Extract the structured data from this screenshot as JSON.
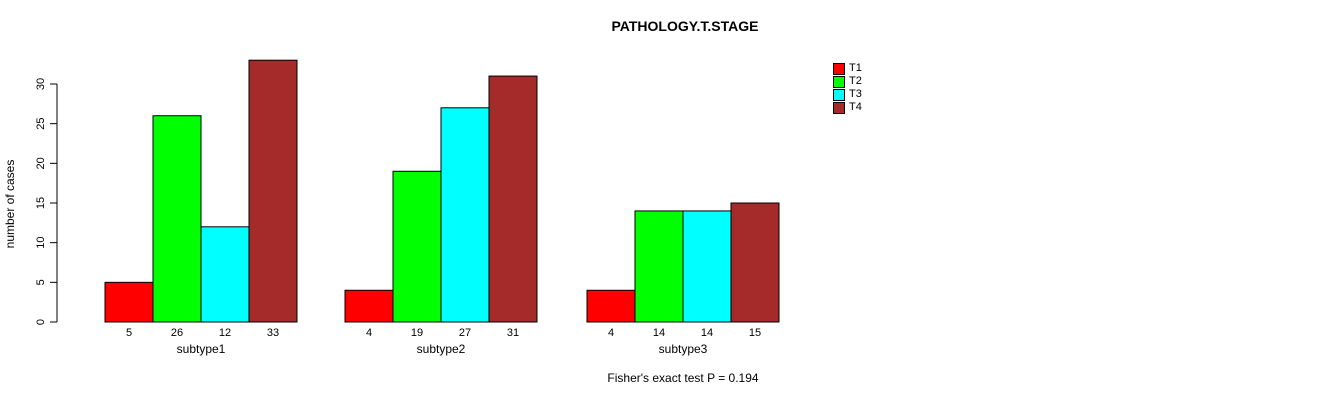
{
  "chart_data": {
    "type": "bar",
    "title": "PATHOLOGY.T.STAGE",
    "ylabel": "number of cases",
    "xlabel": "",
    "footnote": "Fisher's exact test P = 0.194",
    "categories": [
      "subtype1",
      "subtype2",
      "subtype3"
    ],
    "series": [
      {
        "name": "T1",
        "color": "#FF0000",
        "values": [
          5,
          4,
          4
        ]
      },
      {
        "name": "T2",
        "color": "#00FF00",
        "values": [
          26,
          19,
          14
        ]
      },
      {
        "name": "T3",
        "color": "#00FFFF",
        "values": [
          12,
          27,
          14
        ]
      },
      {
        "name": "T4",
        "color": "#A52A2A",
        "values": [
          33,
          31,
          15
        ]
      }
    ],
    "yticks": [
      0,
      5,
      10,
      15,
      20,
      25,
      30
    ],
    "ylim": [
      0,
      33
    ],
    "show_bar_values": true,
    "legend_position": "top-right",
    "grid": false,
    "background": "#FFFFFF",
    "axis_color": "#000000"
  }
}
